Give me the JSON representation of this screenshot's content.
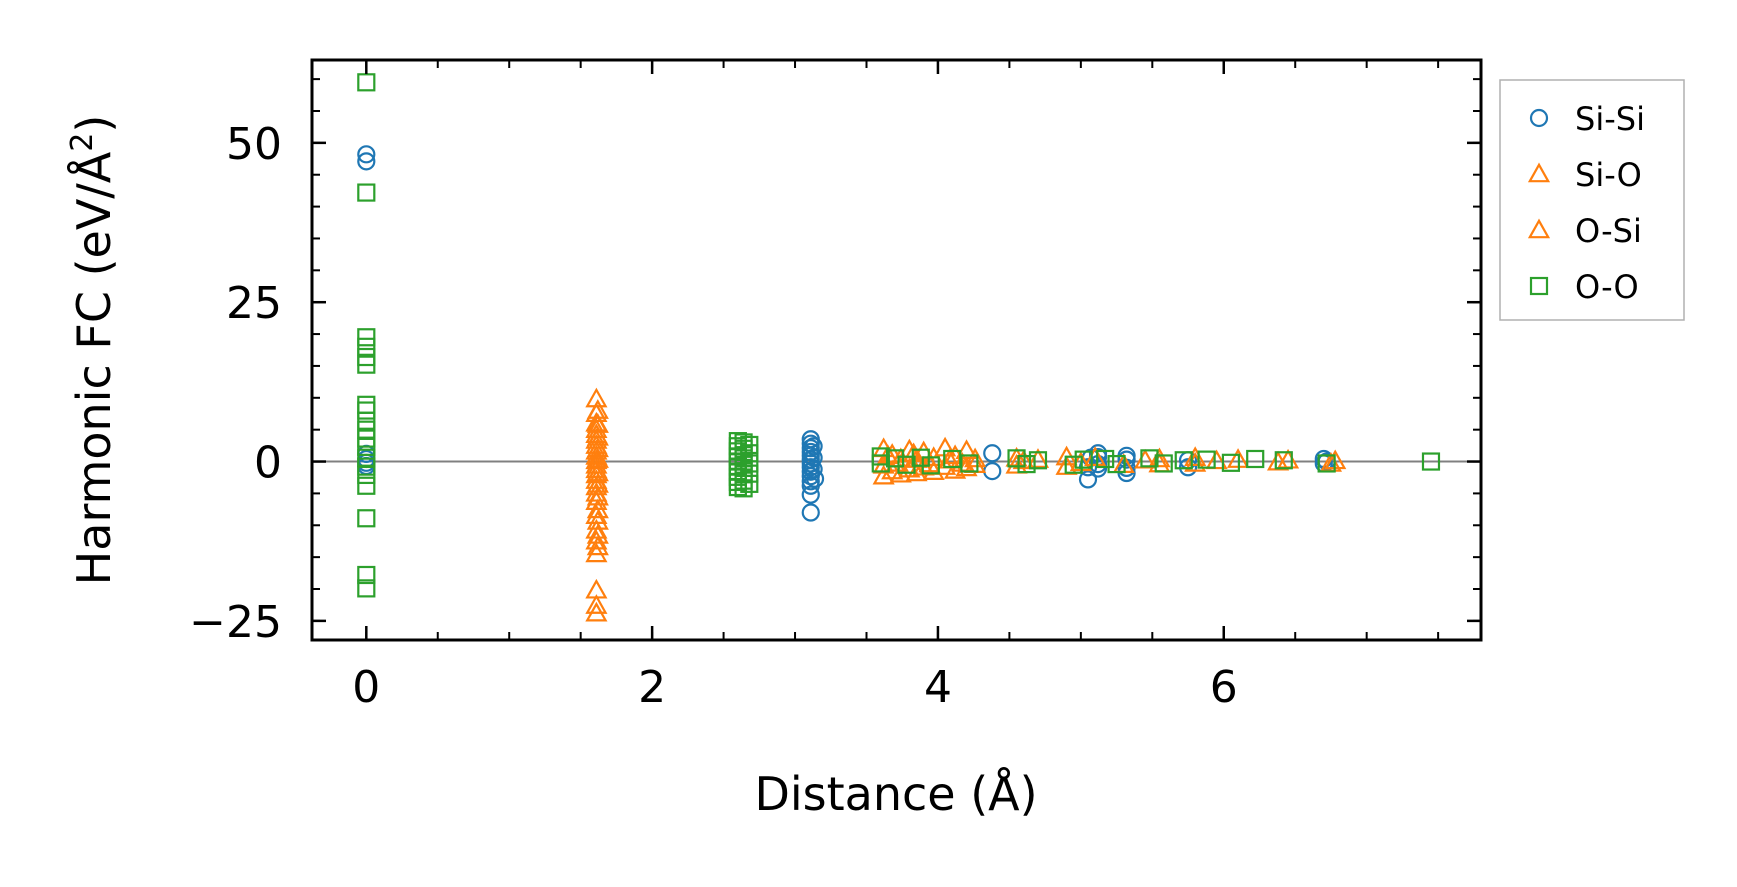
{
  "chart_data": {
    "type": "scatter",
    "xlabel": "Distance (Å)",
    "ylabel_prefix": "Harmonic FC (eV/Å",
    "ylabel_sup": "2",
    "ylabel_suffix": ")",
    "xlim": [
      -0.38,
      7.8
    ],
    "ylim": [
      -28,
      63
    ],
    "x_ticks": [
      0,
      2,
      4,
      6
    ],
    "x_tick_labels": [
      "0",
      "2",
      "4",
      "6"
    ],
    "y_ticks": [
      -25,
      0,
      25,
      50
    ],
    "y_tick_labels": [
      "−25",
      "0",
      "25",
      "50"
    ],
    "x_minor_step": 0.5,
    "y_minor_step": 5,
    "zero_line": true,
    "grid": false,
    "legend_position": "outside-right-top",
    "series": [
      {
        "name": "Si-Si",
        "marker": "circle",
        "color": "#1f77b4",
        "points": [
          [
            0,
            48.2
          ],
          [
            0,
            47.1
          ],
          [
            0,
            1.2
          ],
          [
            0,
            0.4
          ],
          [
            0,
            -0.2
          ],
          [
            0,
            -0.7
          ],
          [
            3.11,
            3.5
          ],
          [
            3.11,
            2.8
          ],
          [
            3.11,
            2.1
          ],
          [
            3.11,
            1.5
          ],
          [
            3.11,
            0.9
          ],
          [
            3.11,
            0.3
          ],
          [
            3.11,
            -0.3
          ],
          [
            3.11,
            -0.9
          ],
          [
            3.11,
            -1.6
          ],
          [
            3.11,
            -2.3
          ],
          [
            3.11,
            -3.1
          ],
          [
            3.11,
            -3.8
          ],
          [
            3.11,
            -5.2
          ],
          [
            3.11,
            -8.0
          ],
          [
            3.13,
            2.4
          ],
          [
            3.13,
            0.6
          ],
          [
            3.13,
            -1.2
          ],
          [
            3.14,
            -2.7
          ],
          [
            4.38,
            1.3
          ],
          [
            4.38,
            -1.5
          ],
          [
            5.05,
            -2.8
          ],
          [
            5.05,
            -0.9
          ],
          [
            5.07,
            0.6
          ],
          [
            5.12,
            1.3
          ],
          [
            5.12,
            0.7
          ],
          [
            5.12,
            -0.4
          ],
          [
            5.12,
            -1.1
          ],
          [
            5.32,
            0.9
          ],
          [
            5.32,
            0.3
          ],
          [
            5.32,
            -1.0
          ],
          [
            5.32,
            -1.8
          ],
          [
            5.75,
            0.2
          ],
          [
            5.75,
            -0.9
          ],
          [
            6.7,
            0.4
          ],
          [
            6.7,
            -0.3
          ],
          [
            6.72,
            0.0
          ]
        ]
      },
      {
        "name": "Si-O",
        "marker": "triangle",
        "color": "#ff7f0e",
        "points": [
          [
            1.61,
            9.8
          ],
          [
            1.61,
            7.5
          ],
          [
            1.61,
            6.0
          ],
          [
            1.61,
            5.0
          ],
          [
            1.61,
            4.2
          ],
          [
            1.61,
            3.3
          ],
          [
            1.61,
            2.5
          ],
          [
            1.61,
            1.6
          ],
          [
            1.61,
            0.8
          ],
          [
            1.61,
            0.1
          ],
          [
            1.61,
            -0.6
          ],
          [
            1.61,
            -1.3
          ],
          [
            1.61,
            -2.1
          ],
          [
            1.61,
            -3.0
          ],
          [
            1.61,
            -4.0
          ],
          [
            1.61,
            -5.0
          ],
          [
            1.61,
            -6.3
          ],
          [
            1.61,
            -8.5
          ],
          [
            1.61,
            -10.8
          ],
          [
            1.61,
            -12.5
          ],
          [
            1.61,
            -14.5
          ],
          [
            1.61,
            -20.2
          ],
          [
            1.61,
            -22.6
          ],
          [
            1.61,
            -23.8
          ],
          [
            3.62,
            2.0
          ],
          [
            3.62,
            -0.6
          ],
          [
            3.62,
            -2.3
          ],
          [
            3.68,
            1.1
          ],
          [
            3.68,
            -1.5
          ],
          [
            3.74,
            0.4
          ],
          [
            3.74,
            -2.0
          ],
          [
            3.8,
            1.8
          ],
          [
            3.8,
            -1.2
          ],
          [
            3.85,
            0.3
          ],
          [
            3.85,
            -1.8
          ],
          [
            3.9,
            1.5
          ],
          [
            3.9,
            -0.9
          ],
          [
            3.97,
            0.6
          ],
          [
            3.97,
            -1.6
          ],
          [
            4.05,
            2.1
          ],
          [
            4.05,
            -0.8
          ],
          [
            4.12,
            0.9
          ],
          [
            4.12,
            -1.4
          ],
          [
            4.2,
            1.7
          ],
          [
            4.2,
            -1.0
          ],
          [
            4.26,
            0.4
          ],
          [
            4.26,
            -0.5
          ],
          [
            4.55,
            0.5
          ],
          [
            4.55,
            -0.6
          ],
          [
            4.7,
            0.3
          ],
          [
            4.9,
            0.7
          ],
          [
            4.9,
            -0.8
          ],
          [
            5.1,
            0.6
          ],
          [
            5.3,
            -0.5
          ],
          [
            5.55,
            0.4
          ],
          [
            5.55,
            -0.4
          ],
          [
            5.8,
            0.6
          ],
          [
            5.8,
            -0.3
          ],
          [
            6.1,
            0.3
          ],
          [
            6.45,
            0.2
          ],
          [
            6.75,
            -0.3
          ]
        ]
      },
      {
        "name": "O-Si",
        "marker": "triangle",
        "color": "#ff7f0e",
        "points": [
          [
            1.62,
            8.0
          ],
          [
            1.62,
            5.8
          ],
          [
            1.62,
            3.8
          ],
          [
            1.62,
            2.0
          ],
          [
            1.62,
            0.3
          ],
          [
            1.62,
            -1.8
          ],
          [
            1.62,
            -3.6
          ],
          [
            1.62,
            -5.6
          ],
          [
            1.62,
            -7.6
          ],
          [
            1.62,
            -9.4
          ],
          [
            1.62,
            -11.6
          ],
          [
            1.62,
            -13.4
          ],
          [
            3.65,
            0.9
          ],
          [
            3.72,
            -0.3
          ],
          [
            3.83,
            1.2
          ],
          [
            3.94,
            -0.4
          ],
          [
            4.08,
            0.2
          ],
          [
            4.17,
            -0.3
          ],
          [
            4.6,
            0.1
          ],
          [
            5.0,
            -0.2
          ],
          [
            5.45,
            0.2
          ],
          [
            5.95,
            0.1
          ],
          [
            6.38,
            -0.1
          ],
          [
            6.78,
            0.1
          ]
        ]
      },
      {
        "name": "O-O",
        "marker": "square",
        "color": "#2ca02c",
        "points": [
          [
            0,
            59.5
          ],
          [
            0,
            42.2
          ],
          [
            0,
            19.5
          ],
          [
            0,
            18.0
          ],
          [
            0,
            16.4
          ],
          [
            0,
            15.2
          ],
          [
            0,
            8.9
          ],
          [
            0,
            8.0
          ],
          [
            0,
            6.4
          ],
          [
            0,
            5.0
          ],
          [
            0,
            3.6
          ],
          [
            0,
            2.3
          ],
          [
            0,
            0.6
          ],
          [
            0,
            -0.8
          ],
          [
            0,
            -2.1
          ],
          [
            0,
            -3.8
          ],
          [
            0,
            -8.9
          ],
          [
            0,
            -17.8
          ],
          [
            0,
            -19.9
          ],
          [
            2.6,
            3.2
          ],
          [
            2.6,
            2.4
          ],
          [
            2.6,
            1.6
          ],
          [
            2.6,
            0.8
          ],
          [
            2.6,
            0.0
          ],
          [
            2.6,
            -0.8
          ],
          [
            2.6,
            -1.6
          ],
          [
            2.6,
            -2.4
          ],
          [
            2.6,
            -3.2
          ],
          [
            2.6,
            -4.0
          ],
          [
            2.64,
            3.0
          ],
          [
            2.64,
            2.0
          ],
          [
            2.64,
            1.0
          ],
          [
            2.64,
            0.0
          ],
          [
            2.64,
            -1.0
          ],
          [
            2.64,
            -2.0
          ],
          [
            2.64,
            -3.0
          ],
          [
            2.64,
            -4.2
          ],
          [
            2.68,
            2.6
          ],
          [
            2.68,
            1.3
          ],
          [
            2.68,
            -0.3
          ],
          [
            2.68,
            -1.9
          ],
          [
            2.68,
            -3.5
          ],
          [
            3.6,
            0.8
          ],
          [
            3.6,
            -0.3
          ],
          [
            3.7,
            0.5
          ],
          [
            3.78,
            -0.5
          ],
          [
            3.88,
            0.6
          ],
          [
            3.95,
            -0.6
          ],
          [
            4.1,
            0.4
          ],
          [
            4.22,
            -0.3
          ],
          [
            4.55,
            0.5
          ],
          [
            4.62,
            -0.4
          ],
          [
            4.7,
            0.2
          ],
          [
            4.95,
            -0.5
          ],
          [
            5.02,
            0.3
          ],
          [
            5.17,
            0.4
          ],
          [
            5.25,
            -0.4
          ],
          [
            5.48,
            0.5
          ],
          [
            5.58,
            -0.3
          ],
          [
            5.72,
            0.2
          ],
          [
            5.88,
            0.3
          ],
          [
            6.05,
            -0.2
          ],
          [
            6.22,
            0.4
          ],
          [
            6.42,
            0.2
          ],
          [
            6.72,
            -0.3
          ],
          [
            7.45,
            0.0
          ]
        ]
      }
    ]
  }
}
